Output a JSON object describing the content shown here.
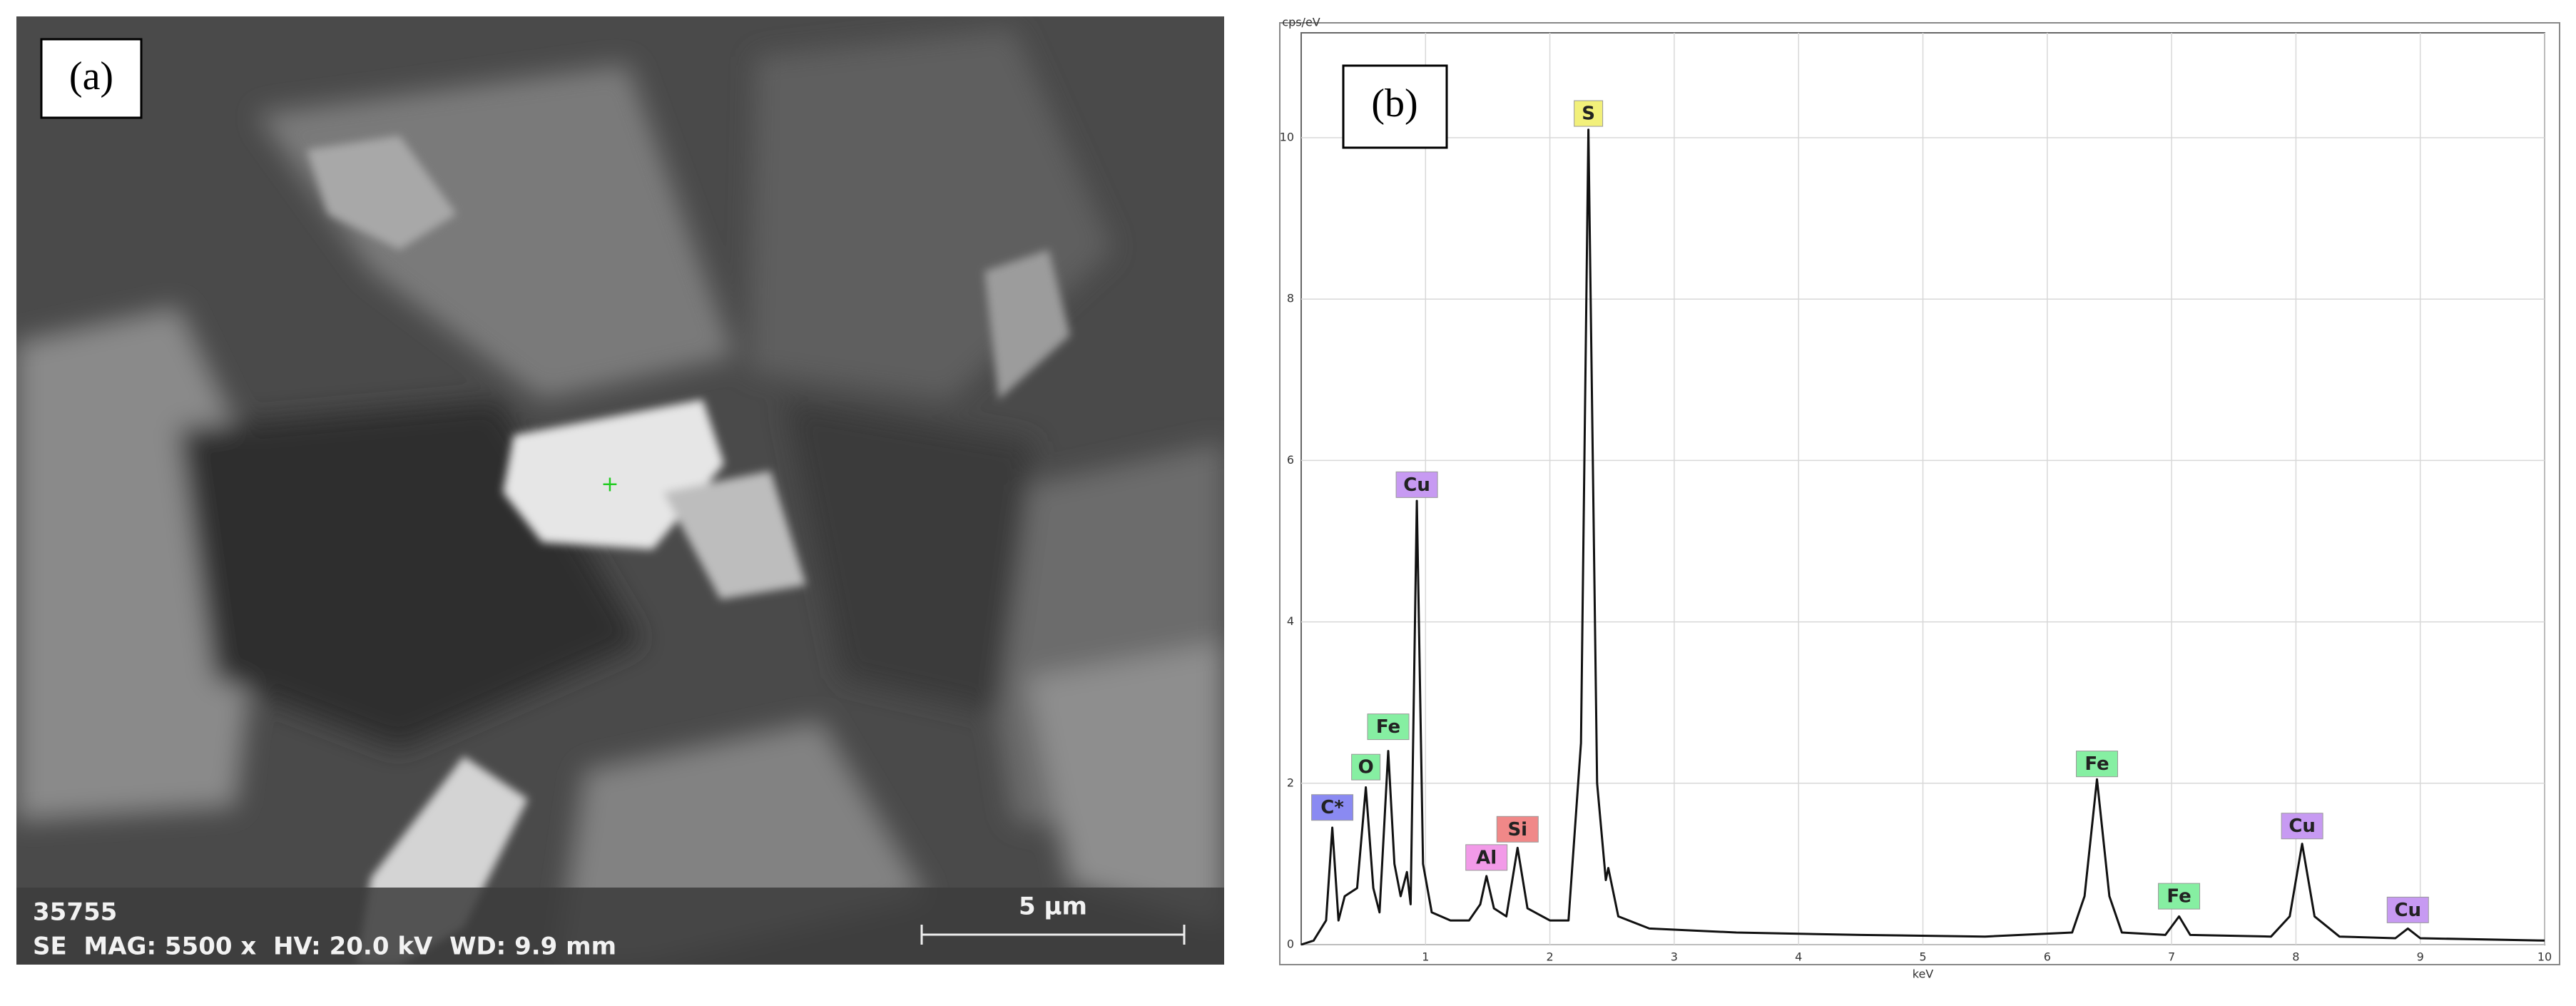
{
  "panel_a": {
    "label": "(a)",
    "sample_id": "35755",
    "info": "SE  MAG: 5500 x  HV: 20.0 kV  WD: 9.9 mm",
    "scale_bar": "5 µm"
  },
  "chart_data": {
    "type": "line",
    "panel_label": "(b)",
    "x_label": "keV",
    "y_label": "cps/eV",
    "color": "#111111",
    "grid": true,
    "xlim": [
      0,
      10
    ],
    "ylim": [
      0,
      11.3
    ],
    "xticks": [
      1,
      2,
      3,
      4,
      5,
      6,
      7,
      8,
      9,
      10
    ],
    "yticks": [
      0,
      2,
      4,
      6,
      8,
      10
    ],
    "x": [
      0.0,
      0.1,
      0.2,
      0.25,
      0.3,
      0.35,
      0.45,
      0.52,
      0.58,
      0.63,
      0.7,
      0.75,
      0.8,
      0.85,
      0.88,
      0.93,
      0.98,
      1.05,
      1.2,
      1.35,
      1.44,
      1.49,
      1.55,
      1.65,
      1.74,
      1.82,
      2.0,
      2.15,
      2.25,
      2.31,
      2.38,
      2.45,
      2.47,
      2.55,
      2.8,
      3.5,
      4.5,
      5.5,
      6.2,
      6.3,
      6.4,
      6.5,
      6.6,
      6.95,
      7.06,
      7.15,
      7.8,
      7.95,
      8.05,
      8.15,
      8.35,
      8.8,
      8.9,
      9.0,
      10.0
    ],
    "values": [
      0,
      0.05,
      0.3,
      1.45,
      0.3,
      0.6,
      0.7,
      1.95,
      0.7,
      0.4,
      2.4,
      1.0,
      0.6,
      0.9,
      0.5,
      5.5,
      1.0,
      0.4,
      0.3,
      0.3,
      0.5,
      0.85,
      0.45,
      0.35,
      1.2,
      0.45,
      0.3,
      0.3,
      2.5,
      10.1,
      2.0,
      0.8,
      0.95,
      0.35,
      0.2,
      0.15,
      0.12,
      0.1,
      0.15,
      0.6,
      2.05,
      0.6,
      0.15,
      0.12,
      0.35,
      0.12,
      0.1,
      0.35,
      1.25,
      0.35,
      0.1,
      0.08,
      0.2,
      0.08,
      0.05
    ],
    "annotations": [
      {
        "text": "C*",
        "x": 0.25,
        "y": 1.7,
        "color": "#8a8af2"
      },
      {
        "text": "O",
        "x": 0.52,
        "y": 2.2,
        "color": "#86efa2"
      },
      {
        "text": "Fe",
        "x": 0.7,
        "y": 2.7,
        "color": "#86efa2"
      },
      {
        "text": "Cu",
        "x": 0.93,
        "y": 5.7,
        "color": "#c79af2"
      },
      {
        "text": "Al",
        "x": 1.49,
        "y": 1.08,
        "color": "#f29ae8"
      },
      {
        "text": "Si",
        "x": 1.74,
        "y": 1.43,
        "color": "#f08888"
      },
      {
        "text": "S",
        "x": 2.31,
        "y": 10.3,
        "color": "#f2f07a"
      },
      {
        "text": "Fe",
        "x": 6.4,
        "y": 2.24,
        "color": "#86efa2"
      },
      {
        "text": "Fe",
        "x": 7.06,
        "y": 0.6,
        "color": "#86efa2"
      },
      {
        "text": "Cu",
        "x": 8.05,
        "y": 1.47,
        "color": "#c79af2"
      },
      {
        "text": "Cu",
        "x": 8.9,
        "y": 0.43,
        "color": "#c79af2"
      }
    ]
  }
}
